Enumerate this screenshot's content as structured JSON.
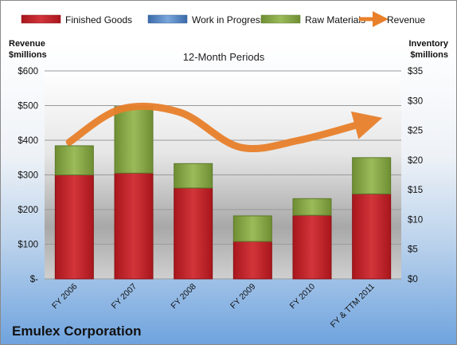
{
  "company": "Emulex Corporation",
  "chart_data": {
    "type": "bar",
    "title": "12-Month Periods",
    "categories": [
      "FY 2006",
      "FY 2007",
      "FY 2008",
      "FY 2009",
      "FY 2010",
      "FY & TTM 2011"
    ],
    "y_left_label": [
      "Revenue",
      "$millions"
    ],
    "y_right_label": [
      "Inventory",
      "$millions"
    ],
    "y_left_ticks": [
      "$-",
      "$100",
      "$200",
      "$300",
      "$400",
      "$500",
      "$600"
    ],
    "y_right_ticks": [
      "$0",
      "$5",
      "$10",
      "$15",
      "$20",
      "$25",
      "$30",
      "$35"
    ],
    "ylim_left": [
      0,
      600
    ],
    "ylim_right": [
      0,
      35
    ],
    "stacked": true,
    "grid": true,
    "legend_position": "top",
    "series": [
      {
        "name": "Finished Goods",
        "axis": "right",
        "color": "#c0272d",
        "values": [
          17.5,
          17.8,
          15.3,
          6.3,
          10.7,
          14.3
        ]
      },
      {
        "name": "Work in Progress",
        "axis": "right",
        "color": "#4f81bd",
        "values": [
          0,
          0,
          0,
          0,
          0,
          0
        ]
      },
      {
        "name": "Raw Materials",
        "axis": "right",
        "color": "#8fae4a",
        "values": [
          4.9,
          11.2,
          4.1,
          4.3,
          2.8,
          6.1
        ]
      },
      {
        "name": "Revenue",
        "axis": "left",
        "type": "line",
        "color": "#e8802b",
        "values": [
          395,
          490,
          480,
          380,
          400,
          455
        ]
      }
    ]
  }
}
